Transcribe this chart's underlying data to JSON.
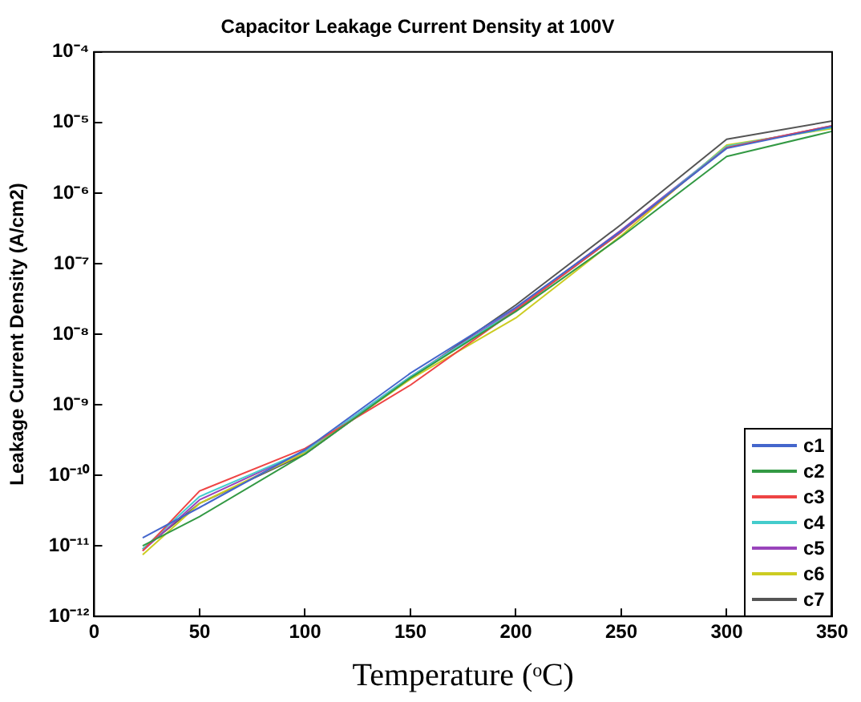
{
  "chart_data": {
    "type": "line",
    "title": "Capacitor Leakage Current Density at 100V",
    "xlabel": "Temperature (ᵒC)",
    "ylabel": "Leakage Current Density (A/cm2)",
    "x": [
      23,
      50,
      100,
      150,
      200,
      250,
      300,
      350
    ],
    "series": [
      {
        "name": "c1",
        "color": "#4466cc",
        "values": [
          1.3e-11,
          3.5e-11,
          2.3e-10,
          2.8e-09,
          2.4e-08,
          2.9e-07,
          4.3e-06,
          8.8e-06
        ]
      },
      {
        "name": "c2",
        "color": "#339944",
        "values": [
          1e-11,
          2.6e-11,
          2e-10,
          2.4e-09,
          2.1e-08,
          2.4e-07,
          3.3e-06,
          7.5e-06
        ]
      },
      {
        "name": "c3",
        "color": "#ee4444",
        "values": [
          8.5e-12,
          6e-11,
          2.4e-10,
          1.9e-09,
          2.2e-08,
          2.8e-07,
          4.4e-06,
          9e-06
        ]
      },
      {
        "name": "c4",
        "color": "#44cccc",
        "values": [
          9e-12,
          5e-11,
          2.2e-10,
          2.5e-09,
          2.2e-08,
          2.8e-07,
          4.6e-06,
          8.5e-06
        ]
      },
      {
        "name": "c5",
        "color": "#9944bb",
        "values": [
          8.5e-12,
          4.5e-11,
          2.2e-10,
          2.5e-09,
          2.3e-08,
          3e-07,
          4.5e-06,
          9e-06
        ]
      },
      {
        "name": "c6",
        "color": "#cccc22",
        "values": [
          7.5e-12,
          4e-11,
          2.1e-10,
          2.3e-09,
          1.7e-08,
          2.5e-07,
          4.8e-06,
          8.2e-06
        ]
      },
      {
        "name": "c7",
        "color": "#555555",
        "values": [
          9e-12,
          4e-11,
          2e-10,
          2.4e-09,
          2.6e-08,
          3.6e-07,
          5.8e-06,
          1.05e-05
        ]
      }
    ],
    "xlim": [
      0,
      350
    ],
    "xticks": [
      0,
      50,
      100,
      150,
      200,
      250,
      300,
      350
    ],
    "ylim": [
      1e-12,
      0.0001
    ],
    "log": "y",
    "yticks": [
      {
        "value": 1e-12,
        "label": "10⁻¹²"
      },
      {
        "value": 1e-11,
        "label": "10⁻¹¹"
      },
      {
        "value": 1e-10,
        "label": "10⁻¹⁰"
      },
      {
        "value": 1e-09,
        "label": "10⁻⁹"
      },
      {
        "value": 1e-08,
        "label": "10⁻⁸"
      },
      {
        "value": 1e-07,
        "label": "10⁻⁷"
      },
      {
        "value": 1e-06,
        "label": "10⁻⁶"
      },
      {
        "value": 1e-05,
        "label": "10⁻⁵"
      },
      {
        "value": 0.0001,
        "label": "10⁻⁴"
      }
    ],
    "grid": false,
    "legend": "bottom right",
    "marker": "none",
    "line_style": "solid"
  }
}
